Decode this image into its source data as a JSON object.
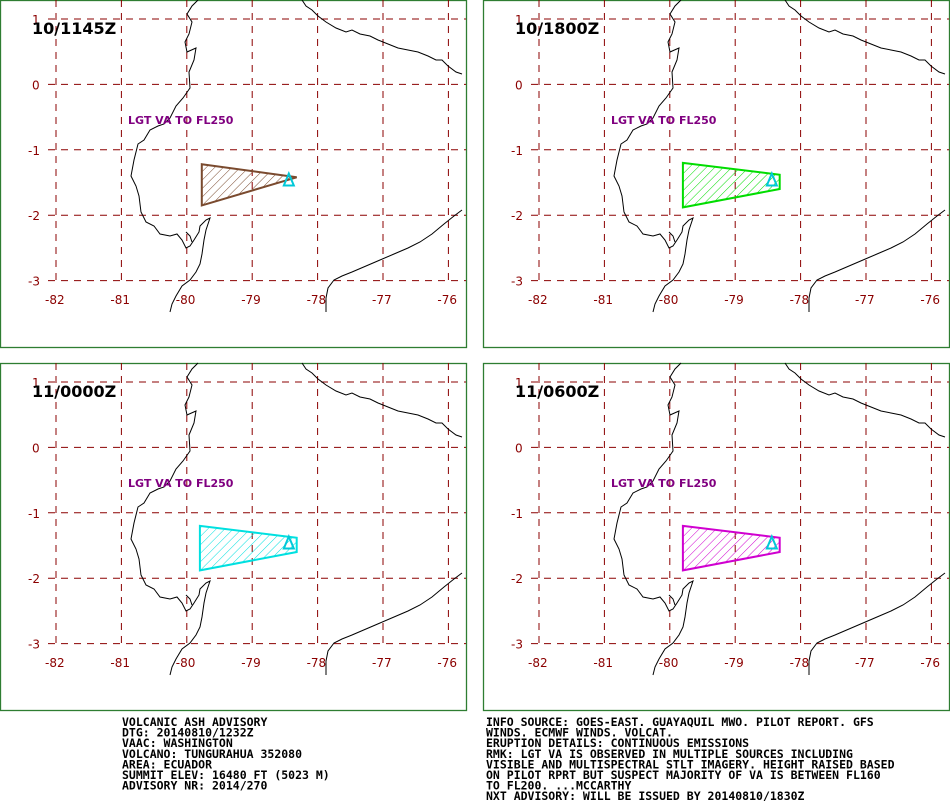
{
  "advisory_left": [
    "VOLCANIC ASH ADVISORY",
    "DTG: 20140810/1232Z",
    "VAAC: WASHINGTON",
    "VOLCANO: TUNGURAHUA 352080",
    "AREA: ECUADOR",
    "SUMMIT ELEV: 16480 FT (5023 M)",
    "ADVISORY NR: 2014/270"
  ],
  "advisory_right": [
    "INFO SOURCE: GOES-EAST. GUAYAQUIL MWO. PILOT REPORT. GFS",
    "WINDS. ECMWF WINDS. VOLCAT.",
    "ERUPTION DETAILS: CONTINUOUS EMISSIONS",
    "RMK: LGT VA IS OBSERVED IN MULTIPLE SOURCES INCLUDING",
    "VISIBLE AND MULTISPECTRAL STLT IMAGERY. HEIGHT RAISED BASED",
    "ON PILOT RPRT BUT SUSPECT MAJORITY OF VA IS BETWEEN FL160",
    "TO FL200. ...MCCARTHY",
    "NXT ADVISORY: WILL BE ISSUED BY 20140810/1830Z"
  ],
  "map": {
    "lon_ticks": [
      "-82",
      "-81",
      "-80",
      "-79",
      "-78",
      "-77",
      "-76"
    ],
    "lat_ticks": [
      "1",
      "0",
      "-1",
      "-2",
      "-3"
    ],
    "lon_range": [
      -82.3,
      -76.0
    ],
    "lat_range": [
      1.1,
      -3.15
    ],
    "volcano": {
      "lon": -78.44,
      "lat": -1.47
    },
    "colors": {
      "grid": "#8b0000",
      "panel_border": "#2e7d32",
      "label": "#800080",
      "volcano_marker": "#00c8d8"
    }
  },
  "panels": [
    {
      "time": "10/1145Z",
      "label": "LGT VA TO FL250",
      "color": "#7a4a2e",
      "ash_polygon": [
        [
          -79.77,
          -1.22
        ],
        [
          -78.32,
          -1.42
        ],
        [
          -79.77,
          -1.85
        ]
      ]
    },
    {
      "time": "10/1800Z",
      "label": "LGT VA TO FL250",
      "color": "#00dd00",
      "ash_polygon": [
        [
          -79.8,
          -1.2
        ],
        [
          -78.32,
          -1.38
        ],
        [
          -78.32,
          -1.6
        ],
        [
          -79.8,
          -1.88
        ]
      ]
    },
    {
      "time": "11/0000Z",
      "label": "LGT VA TO FL250",
      "color": "#00e0e0",
      "ash_polygon": [
        [
          -79.8,
          -1.2
        ],
        [
          -78.32,
          -1.38
        ],
        [
          -78.32,
          -1.6
        ],
        [
          -79.8,
          -1.88
        ]
      ]
    },
    {
      "time": "11/0600Z",
      "label": "LGT VA TO FL250",
      "color": "#d000d0",
      "ash_polygon": [
        [
          -79.8,
          -1.2
        ],
        [
          -78.32,
          -1.38
        ],
        [
          -78.32,
          -1.6
        ],
        [
          -79.8,
          -1.88
        ]
      ]
    }
  ]
}
